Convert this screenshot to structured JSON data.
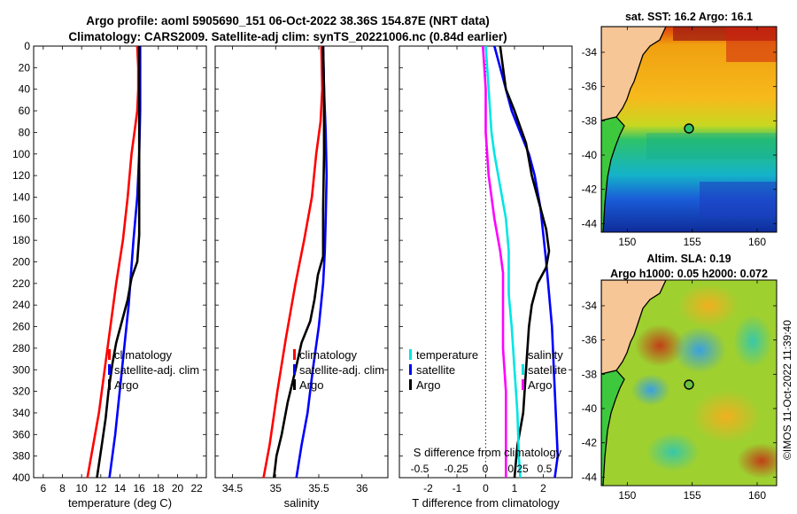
{
  "header": {
    "line1": "Argo profile: aoml 5905690_151 06-Oct-2022 38.36S 154.87E (NRT data)",
    "line2": "Climatology: CARS2009. Satellite-adj clim: synTS_20221006.nc (0.84d earlier)"
  },
  "stamp": "©IMOS 11-Oct-2022 11:39:40",
  "colors": {
    "climatology": "#ff0000",
    "satellite": "#0000ff",
    "argo": "#000000",
    "temp_diff": "#00e5e5",
    "sal_diff": "#ff00ff"
  },
  "chart_data": [
    {
      "type": "line",
      "name": "temperature-profile",
      "xlabel": "temperature (deg C)",
      "xlim": [
        5,
        23
      ],
      "ylim": [
        0,
        400
      ],
      "xticks": [
        "6",
        "8",
        "10",
        "12",
        "14",
        "16",
        "18",
        "20",
        "22"
      ],
      "yticks": [
        "0",
        "20",
        "40",
        "60",
        "80",
        "100",
        "120",
        "140",
        "160",
        "180",
        "200",
        "220",
        "240",
        "260",
        "280",
        "300",
        "320",
        "340",
        "360",
        "380",
        "400"
      ],
      "legend": [
        "climatology",
        "satellite-adj. clim",
        "Argo"
      ],
      "series": [
        {
          "name": "climatology",
          "color": "#ff0000",
          "points": [
            [
              15.8,
              0
            ],
            [
              15.9,
              20
            ],
            [
              15.9,
              40
            ],
            [
              15.8,
              60
            ],
            [
              15.5,
              80
            ],
            [
              15.2,
              100
            ],
            [
              14.8,
              140
            ],
            [
              14.3,
              180
            ],
            [
              13.6,
              220
            ],
            [
              12.7,
              280
            ],
            [
              11.8,
              340
            ],
            [
              10.6,
              400
            ]
          ]
        },
        {
          "name": "satellite-adj. clim",
          "color": "#0000ff",
          "points": [
            [
              16.1,
              0
            ],
            [
              16.1,
              40
            ],
            [
              16.1,
              60
            ],
            [
              16.0,
              100
            ],
            [
              15.8,
              140
            ],
            [
              15.4,
              180
            ],
            [
              14.9,
              240
            ],
            [
              14.2,
              300
            ],
            [
              13.5,
              360
            ],
            [
              12.9,
              400
            ]
          ]
        },
        {
          "name": "Argo",
          "color": "#000000",
          "points": [
            [
              16.0,
              0
            ],
            [
              16.0,
              40
            ],
            [
              16.0,
              100
            ],
            [
              16.0,
              140
            ],
            [
              16.0,
              175
            ],
            [
              15.8,
              200
            ],
            [
              15.2,
              215
            ],
            [
              14.8,
              235
            ],
            [
              14.2,
              255
            ],
            [
              13.6,
              275
            ],
            [
              13.2,
              295
            ],
            [
              12.8,
              320
            ],
            [
              12.5,
              345
            ],
            [
              12.1,
              370
            ],
            [
              11.6,
              400
            ]
          ]
        }
      ]
    },
    {
      "type": "line",
      "name": "salinity-profile",
      "xlabel": "salinity",
      "xlim": [
        34.3,
        36.3
      ],
      "ylim": [
        0,
        400
      ],
      "xticks": [
        "34.5",
        "35",
        "35.5",
        "36"
      ],
      "legend": [
        "climatology",
        "satellite-adj. clim",
        "Argo"
      ],
      "series": [
        {
          "name": "climatology",
          "color": "#ff0000",
          "points": [
            [
              35.53,
              0
            ],
            [
              35.54,
              40
            ],
            [
              35.52,
              70
            ],
            [
              35.47,
              100
            ],
            [
              35.42,
              140
            ],
            [
              35.33,
              180
            ],
            [
              35.23,
              220
            ],
            [
              35.12,
              270
            ],
            [
              35.02,
              320
            ],
            [
              34.93,
              370
            ],
            [
              34.86,
              400
            ]
          ]
        },
        {
          "name": "satellite-adj. clim",
          "color": "#0000ff",
          "points": [
            [
              35.55,
              0
            ],
            [
              35.56,
              40
            ],
            [
              35.58,
              80
            ],
            [
              35.59,
              120
            ],
            [
              35.58,
              160
            ],
            [
              35.57,
              190
            ],
            [
              35.55,
              220
            ],
            [
              35.5,
              260
            ],
            [
              35.43,
              300
            ],
            [
              35.37,
              340
            ],
            [
              35.3,
              370
            ],
            [
              35.24,
              400
            ]
          ]
        },
        {
          "name": "Argo",
          "color": "#000000",
          "points": [
            [
              35.55,
              0
            ],
            [
              35.56,
              40
            ],
            [
              35.56,
              100
            ],
            [
              35.55,
              150
            ],
            [
              35.55,
              195
            ],
            [
              35.49,
              212
            ],
            [
              35.45,
              235
            ],
            [
              35.4,
              255
            ],
            [
              35.3,
              275
            ],
            [
              35.23,
              300
            ],
            [
              35.14,
              330
            ],
            [
              35.07,
              360
            ],
            [
              35.01,
              380
            ],
            [
              34.98,
              400
            ]
          ]
        }
      ]
    },
    {
      "type": "line",
      "name": "difference-profile",
      "xlabel": "T difference from climatology",
      "xlim": [
        -3,
        3
      ],
      "ylim": [
        0,
        400
      ],
      "xticks": [
        "-2",
        "-1",
        "0",
        "1",
        "2"
      ],
      "top_xlabel": "S difference from climatology",
      "top_xticks": [
        "-0.5",
        "-0.25",
        "0",
        "0.25",
        "0.5"
      ],
      "legend_left": [
        "temperature",
        "satellite",
        "Argo"
      ],
      "legend_right": [
        "salinity",
        "satellite",
        "Argo"
      ],
      "series": [
        {
          "name": "temperature satellite",
          "color": "#0000ff",
          "points": [
            [
              0.3,
              0
            ],
            [
              0.5,
              20
            ],
            [
              0.7,
              40
            ],
            [
              0.9,
              60
            ],
            [
              1.2,
              80
            ],
            [
              1.5,
              100
            ],
            [
              1.7,
              120
            ],
            [
              1.9,
              150
            ],
            [
              2.1,
              200
            ],
            [
              2.3,
              260
            ],
            [
              2.4,
              320
            ],
            [
              2.5,
              380
            ],
            [
              2.4,
              400
            ]
          ]
        },
        {
          "name": "temperature Argo",
          "color": "#000000",
          "points": [
            [
              0.5,
              0
            ],
            [
              0.6,
              20
            ],
            [
              0.7,
              40
            ],
            [
              1.0,
              60
            ],
            [
              1.4,
              90
            ],
            [
              1.6,
              120
            ],
            [
              1.9,
              150
            ],
            [
              2.1,
              170
            ],
            [
              2.2,
              190
            ],
            [
              2.1,
              205
            ],
            [
              1.8,
              220
            ],
            [
              1.6,
              240
            ],
            [
              1.5,
              260
            ],
            [
              1.4,
              300
            ],
            [
              1.3,
              340
            ],
            [
              1.1,
              370
            ],
            [
              1.0,
              400
            ]
          ]
        },
        {
          "name": "salinity satellite",
          "color": "#00e5e5",
          "points": [
            [
              0.0,
              0
            ],
            [
              0.1,
              40
            ],
            [
              0.2,
              80
            ],
            [
              0.3,
              100
            ],
            [
              0.5,
              130
            ],
            [
              0.7,
              160
            ],
            [
              0.8,
              190
            ],
            [
              0.8,
              230
            ],
            [
              0.9,
              260
            ],
            [
              1.0,
              300
            ],
            [
              1.1,
              340
            ],
            [
              1.15,
              380
            ],
            [
              1.2,
              400
            ]
          ]
        },
        {
          "name": "salinity Argo",
          "color": "#ff00ff",
          "points": [
            [
              -0.1,
              0
            ],
            [
              0.0,
              40
            ],
            [
              0.0,
              80
            ],
            [
              0.1,
              120
            ],
            [
              0.3,
              160
            ],
            [
              0.5,
              190
            ],
            [
              0.6,
              210
            ],
            [
              0.6,
              240
            ],
            [
              0.6,
              280
            ],
            [
              0.7,
              320
            ],
            [
              0.7,
              360
            ],
            [
              0.7,
              400
            ]
          ]
        }
      ]
    },
    {
      "type": "heatmap",
      "name": "sst-map",
      "title": "sat. SST: 16.2 Argo: 16.1",
      "xticks": [
        "150",
        "155",
        "160"
      ],
      "yticks": [
        "-34",
        "-36",
        "-38",
        "-40",
        "-42",
        "-44"
      ],
      "xlim": [
        148,
        161.5
      ],
      "ylim": [
        -44.5,
        -32.5
      ],
      "marker": [
        154.87,
        -38.36
      ]
    },
    {
      "type": "heatmap",
      "name": "sla-map",
      "title1": "Altim. SLA: 0.19",
      "title2": "Argo h1000: 0.05 h2000: 0.072",
      "xticks": [
        "150",
        "155",
        "160"
      ],
      "yticks": [
        "-34",
        "-36",
        "-38",
        "-40",
        "-42",
        "-44"
      ],
      "xlim": [
        148,
        161.5
      ],
      "ylim": [
        -44.5,
        -32.5
      ],
      "marker": [
        154.87,
        -38.36
      ]
    }
  ]
}
